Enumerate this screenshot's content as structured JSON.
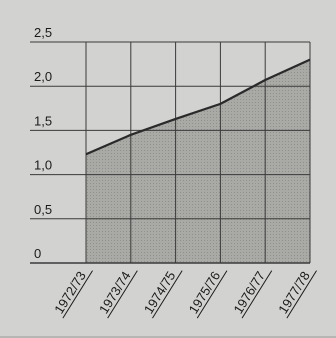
{
  "chart_data": {
    "type": "area",
    "title": "",
    "xlabel": "",
    "ylabel": "",
    "categories": [
      "1972/73",
      "1973/74",
      "1974/75",
      "1975/76",
      "1976/77",
      "1977/78"
    ],
    "series": [
      {
        "values": [
          1.23,
          1.45,
          1.63,
          1.8,
          2.07,
          2.3
        ]
      }
    ],
    "ylim": [
      0,
      2.5
    ],
    "yticks": [
      0,
      0.5,
      1.0,
      1.5,
      2.0,
      2.5
    ],
    "ytick_labels": [
      "0",
      "0,5",
      "1,0",
      "1,5",
      "2,0",
      "2,5"
    ],
    "grid": true,
    "legend": "none",
    "colors": {
      "background": "#d2d2d0",
      "area_fill": "#a9a9a6",
      "line": "#2a2a2a",
      "grid": "#3a3a3a",
      "text": "#1b1b1b"
    }
  }
}
